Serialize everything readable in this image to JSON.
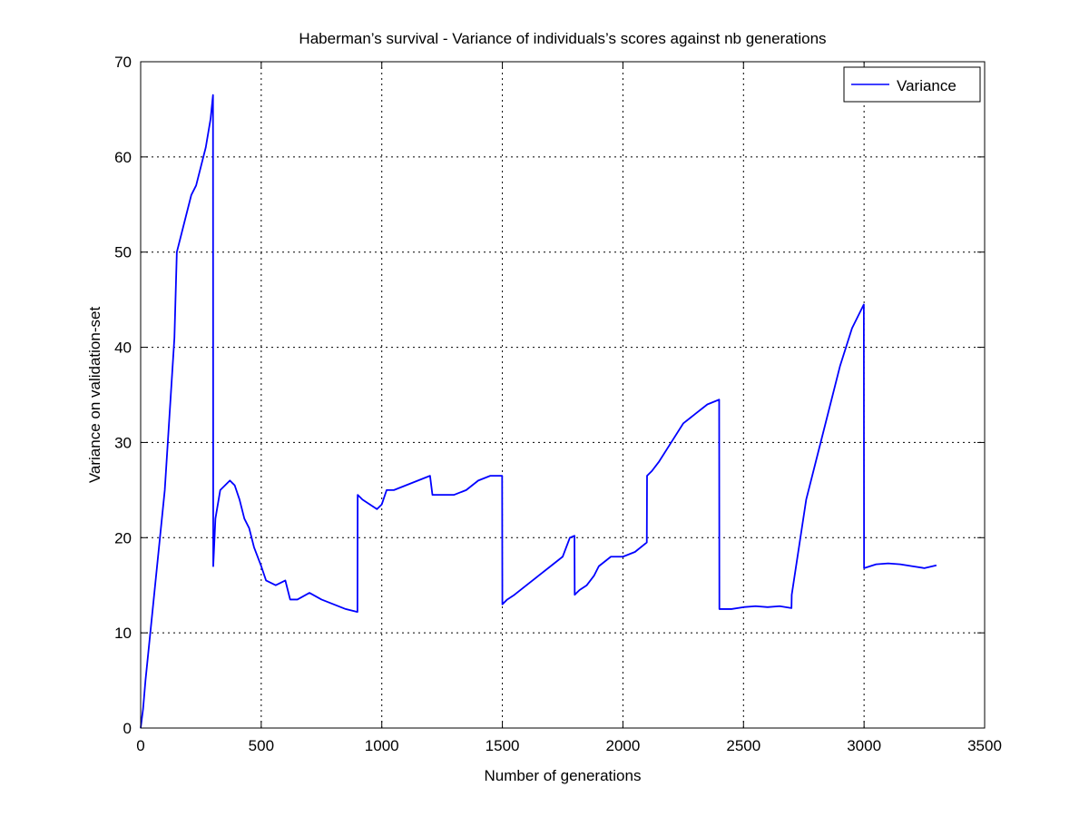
{
  "chart_data": {
    "type": "line",
    "title": "Haberman’s survival - Variance of individuals’s scores against nb generations",
    "xlabel": "Number of generations",
    "ylabel": "Variance on validation-set",
    "xlim": [
      0,
      3500
    ],
    "ylim": [
      0,
      70
    ],
    "xticks": [
      0,
      500,
      1000,
      1500,
      2000,
      2500,
      3000,
      3500
    ],
    "yticks": [
      0,
      10,
      20,
      30,
      40,
      50,
      60,
      70
    ],
    "grid": true,
    "legend": {
      "placement": "top-right",
      "entries": [
        "Variance"
      ]
    },
    "series": [
      {
        "name": "Variance",
        "color": "#0000ff",
        "x": [
          0,
          10,
          20,
          40,
          60,
          80,
          100,
          120,
          140,
          150,
          170,
          190,
          210,
          230,
          250,
          270,
          290,
          300,
          301,
          310,
          330,
          350,
          370,
          390,
          410,
          430,
          450,
          470,
          500,
          520,
          560,
          600,
          620,
          650,
          700,
          750,
          800,
          850,
          899,
          900,
          920,
          950,
          980,
          1000,
          1020,
          1050,
          1100,
          1150,
          1200,
          1210,
          1250,
          1300,
          1350,
          1400,
          1450,
          1499,
          1500,
          1520,
          1550,
          1600,
          1650,
          1700,
          1750,
          1780,
          1799,
          1800,
          1820,
          1850,
          1880,
          1900,
          1950,
          2000,
          2050,
          2099,
          2100,
          2120,
          2150,
          2200,
          2250,
          2300,
          2350,
          2399,
          2400,
          2450,
          2500,
          2550,
          2600,
          2650,
          2699,
          2700,
          2730,
          2760,
          2800,
          2850,
          2900,
          2950,
          2999,
          3000,
          3050,
          3100,
          3150,
          3200,
          3250,
          3300
        ],
        "values": [
          0,
          2,
          5,
          10,
          15,
          20,
          25,
          33,
          41,
          50,
          52,
          54,
          56,
          57,
          59,
          61,
          64,
          66.5,
          17,
          22,
          25,
          25.5,
          26,
          25.5,
          24,
          22,
          21,
          19,
          17,
          15.5,
          15,
          15.5,
          13.5,
          13.5,
          14.2,
          13.5,
          13,
          12.5,
          12.2,
          24.5,
          24,
          23.5,
          23,
          23.5,
          25,
          25,
          25.5,
          26,
          26.5,
          24.5,
          24.5,
          24.5,
          25,
          26,
          26.5,
          26.5,
          13,
          13.5,
          14,
          15,
          16,
          17,
          18,
          20,
          20.2,
          14,
          14.5,
          15,
          16,
          17,
          18,
          18,
          18.5,
          19.5,
          26.5,
          27,
          28,
          30,
          32,
          33,
          34,
          34.5,
          12.5,
          12.5,
          12.7,
          12.8,
          12.7,
          12.8,
          12.6,
          14,
          19,
          24,
          28,
          33,
          38,
          42,
          44.5,
          16.8,
          17.2,
          17.3,
          17.2,
          17.0,
          16.8,
          17.1
        ]
      }
    ]
  }
}
